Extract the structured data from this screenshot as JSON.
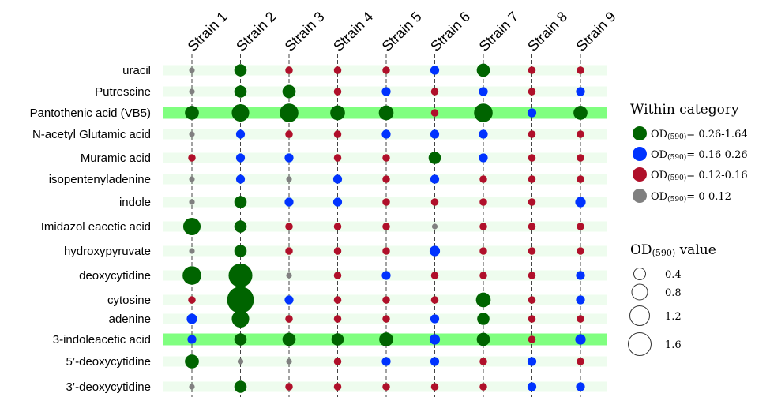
{
  "chart_data": {
    "type": "scatter",
    "columns": [
      "Strain 1",
      "Strain 2",
      "Strain 3",
      "Strain 4",
      "Strain 5",
      "Strain 6",
      "Strain 7",
      "Strain 8",
      "Strain 9"
    ],
    "rows": [
      {
        "label": "uracil",
        "highlight": false,
        "values": [
          0.04,
          0.35,
          0.13,
          0.13,
          0.13,
          0.18,
          0.4,
          0.13,
          0.13
        ],
        "categories": [
          "gray",
          "green",
          "red",
          "red",
          "red",
          "blue",
          "green",
          "red",
          "red"
        ]
      },
      {
        "label": "Putrescine",
        "highlight": false,
        "values": [
          0.04,
          0.35,
          0.4,
          0.13,
          0.18,
          0.13,
          0.18,
          0.13,
          0.18
        ],
        "categories": [
          "gray",
          "green",
          "green",
          "red",
          "blue",
          "red",
          "blue",
          "red",
          "blue"
        ]
      },
      {
        "label": "Pantothenic acid (VB5)",
        "highlight": true,
        "values": [
          0.45,
          0.7,
          0.8,
          0.5,
          0.5,
          0.13,
          0.8,
          0.18,
          0.45
        ],
        "categories": [
          "green",
          "green",
          "green",
          "green",
          "green",
          "red",
          "green",
          "blue",
          "green"
        ]
      },
      {
        "label": "N-acetyl Glutamic acid",
        "highlight": false,
        "values": [
          0.04,
          0.18,
          0.13,
          0.13,
          0.18,
          0.18,
          0.18,
          0.13,
          0.13
        ],
        "categories": [
          "gray",
          "blue",
          "red",
          "red",
          "blue",
          "blue",
          "blue",
          "red",
          "red"
        ]
      },
      {
        "label": "Muramic acid",
        "highlight": false,
        "values": [
          0.13,
          0.18,
          0.18,
          0.13,
          0.13,
          0.35,
          0.18,
          0.13,
          0.13
        ],
        "categories": [
          "red",
          "blue",
          "blue",
          "red",
          "red",
          "green",
          "blue",
          "red",
          "red"
        ]
      },
      {
        "label": "isopentenyladenine",
        "highlight": false,
        "values": [
          0.06,
          0.18,
          0.06,
          0.18,
          0.13,
          0.18,
          0.13,
          0.13,
          0.13
        ],
        "categories": [
          "gray",
          "blue",
          "gray",
          "blue",
          "red",
          "blue",
          "red",
          "red",
          "red"
        ]
      },
      {
        "label": "indole",
        "highlight": false,
        "values": [
          0.04,
          0.35,
          0.18,
          0.18,
          0.13,
          0.13,
          0.13,
          0.13,
          0.25
        ],
        "categories": [
          "gray",
          "green",
          "blue",
          "blue",
          "red",
          "red",
          "red",
          "red",
          "blue"
        ]
      },
      {
        "label": "Imidazol eacetic acid",
        "highlight": false,
        "values": [
          0.7,
          0.35,
          0.13,
          0.13,
          0.13,
          0.06,
          0.13,
          0.13,
          0.13
        ],
        "categories": [
          "green",
          "green",
          "red",
          "red",
          "red",
          "gray",
          "red",
          "red",
          "red"
        ]
      },
      {
        "label": "hydroxypyruvate",
        "highlight": false,
        "values": [
          0.06,
          0.35,
          0.13,
          0.13,
          0.13,
          0.25,
          0.13,
          0.13,
          0.13
        ],
        "categories": [
          "gray",
          "green",
          "red",
          "red",
          "red",
          "blue",
          "red",
          "red",
          "red"
        ]
      },
      {
        "label": "deoxycytidine",
        "highlight": false,
        "values": [
          0.8,
          1.3,
          0.06,
          0.13,
          0.18,
          0.13,
          0.13,
          0.13,
          0.18
        ],
        "categories": [
          "green",
          "green",
          "gray",
          "red",
          "blue",
          "red",
          "red",
          "red",
          "blue"
        ]
      },
      {
        "label": "cytosine",
        "highlight": false,
        "values": [
          0.13,
          1.64,
          0.18,
          0.13,
          0.13,
          0.13,
          0.5,
          0.13,
          0.18
        ],
        "categories": [
          "red",
          "green",
          "blue",
          "red",
          "red",
          "red",
          "green",
          "red",
          "blue"
        ]
      },
      {
        "label": "adenine",
        "highlight": false,
        "values": [
          0.25,
          0.7,
          0.13,
          0.13,
          0.13,
          0.18,
          0.35,
          0.13,
          0.13
        ],
        "categories": [
          "blue",
          "green",
          "red",
          "red",
          "red",
          "blue",
          "green",
          "red",
          "red"
        ]
      },
      {
        "label": "3-indoleacetic acid",
        "highlight": true,
        "values": [
          0.18,
          0.35,
          0.4,
          0.35,
          0.45,
          0.25,
          0.4,
          0.13,
          0.25
        ],
        "categories": [
          "blue",
          "green",
          "green",
          "green",
          "green",
          "blue",
          "green",
          "red",
          "blue"
        ]
      },
      {
        "label": "5’-deoxycytidine",
        "highlight": false,
        "values": [
          0.45,
          0.02,
          0.06,
          0.13,
          0.18,
          0.18,
          0.13,
          0.18,
          0.13
        ],
        "categories": [
          "green",
          "gray",
          "gray",
          "red",
          "blue",
          "blue",
          "red",
          "blue",
          "red"
        ]
      },
      {
        "label": "3’-deoxycytidine",
        "highlight": false,
        "values": [
          0.0,
          0.35,
          0.13,
          0.13,
          0.13,
          0.13,
          0.13,
          0.18,
          0.18
        ],
        "categories": [
          "gray",
          "green",
          "red",
          "red",
          "red",
          "red",
          "red",
          "blue",
          "blue"
        ]
      }
    ],
    "colors": {
      "green": "#006400",
      "blue": "#0033ff",
      "red": "#b0102a",
      "gray": "#808080",
      "row_band": "#eefcee",
      "row_highlight": "#80ff80"
    },
    "legend_color": {
      "title": "Within category",
      "items": [
        {
          "key": "green",
          "prefix": "OD",
          "sub": "(590)",
          "range": "= 0.26-1.64"
        },
        {
          "key": "blue",
          "prefix": "OD",
          "sub": "(590)",
          "range": "= 0.16-0.26"
        },
        {
          "key": "red",
          "prefix": "OD",
          "sub": "(590)",
          "range": "= 0.12-0.16"
        },
        {
          "key": "gray",
          "prefix": "OD",
          "sub": "(590)",
          "range": "= 0-0.12"
        }
      ]
    },
    "legend_size": {
      "title_prefix": "OD",
      "title_sub": "(590)",
      "title_suffix": " value",
      "items": [
        {
          "value": 0.4,
          "label": "0.4"
        },
        {
          "value": 0.8,
          "label": "0.8"
        },
        {
          "value": 1.2,
          "label": "1.2"
        },
        {
          "value": 1.6,
          "label": "1.6"
        }
      ]
    }
  }
}
